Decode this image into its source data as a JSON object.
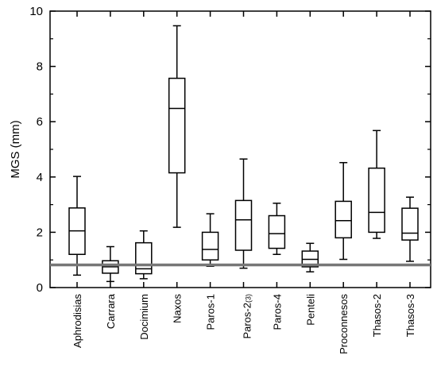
{
  "chart_data": {
    "type": "box",
    "ylabel": "MGS (mm)",
    "ylim": [
      0,
      10
    ],
    "yticks": [
      "0",
      "2",
      "4",
      "6",
      "8",
      "10"
    ],
    "grid": false,
    "categories": [
      "Aphrodisias",
      "Carrara",
      "Docimium",
      "Naxos",
      "Paros-1",
      "Paros-2",
      "Paros-4",
      "Penteli",
      "Proconnesos",
      "Thasos-2",
      "Thasos-3"
    ],
    "category_superscripts": [
      "",
      "",
      "",
      "",
      "",
      "(3)",
      "",
      "",
      "",
      "",
      ""
    ],
    "boxes": [
      {
        "whisker_low": 0.45,
        "q1": 1.2,
        "median": 2.05,
        "q3": 2.88,
        "whisker_high": 4.02
      },
      {
        "whisker_low": 0.22,
        "q1": 0.52,
        "median": 0.75,
        "q3": 0.97,
        "whisker_high": 1.48
      },
      {
        "whisker_low": 0.32,
        "q1": 0.5,
        "median": 0.68,
        "q3": 1.62,
        "whisker_high": 2.05
      },
      {
        "whisker_low": 2.18,
        "q1": 4.15,
        "median": 6.48,
        "q3": 7.57,
        "whisker_high": 9.47
      },
      {
        "whisker_low": 0.77,
        "q1": 1.0,
        "median": 1.38,
        "q3": 2.0,
        "whisker_high": 2.67
      },
      {
        "whisker_low": 0.7,
        "q1": 1.35,
        "median": 2.45,
        "q3": 3.15,
        "whisker_high": 4.65
      },
      {
        "whisker_low": 1.2,
        "q1": 1.42,
        "median": 1.95,
        "q3": 2.6,
        "whisker_high": 3.05
      },
      {
        "whisker_low": 0.57,
        "q1": 0.75,
        "median": 1.02,
        "q3": 1.32,
        "whisker_high": 1.6
      },
      {
        "whisker_low": 1.02,
        "q1": 1.8,
        "median": 2.42,
        "q3": 3.12,
        "whisker_high": 4.52
      },
      {
        "whisker_low": 1.78,
        "q1": 2.0,
        "median": 2.72,
        "q3": 4.32,
        "whisker_high": 5.68
      },
      {
        "whisker_low": 0.95,
        "q1": 1.72,
        "median": 1.97,
        "q3": 2.87,
        "whisker_high": 3.27
      }
    ],
    "reference_line": {
      "y": 0.82,
      "color": "#777777"
    }
  }
}
